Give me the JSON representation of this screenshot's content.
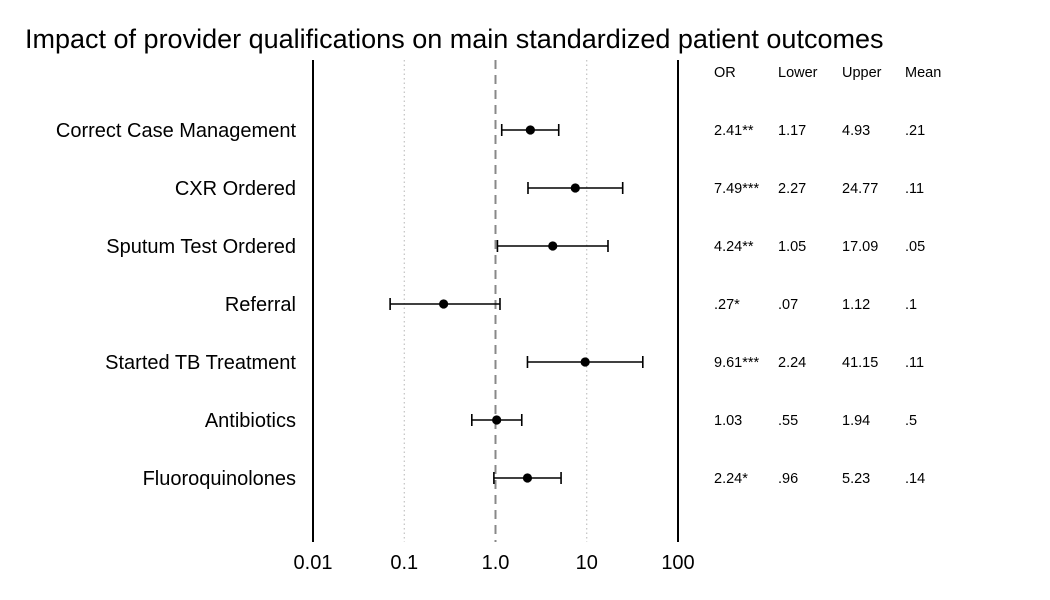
{
  "chart_data": {
    "type": "scatter",
    "title": "Impact of provider qualifications on main standardized patient outcomes",
    "x_scale": "log",
    "xlim": [
      0.01,
      100
    ],
    "x_ticks": [
      0.01,
      0.1,
      1.0,
      10,
      100
    ],
    "x_tick_labels": [
      "0.01",
      "0.1",
      "1.0",
      "10",
      "100"
    ],
    "reference_line": 1.0,
    "grid": "dotted vertical at 0.1 and 10",
    "categories": [
      "Correct Case Management",
      "CXR Ordered",
      "Sputum Test Ordered",
      "Referral",
      "Started TB Treatment",
      "Antibiotics",
      "Fluoroquinolones"
    ],
    "estimates": [
      2.41,
      7.49,
      4.24,
      0.27,
      9.61,
      1.03,
      2.24
    ],
    "lower": [
      1.17,
      2.27,
      1.05,
      0.07,
      2.24,
      0.55,
      0.96
    ],
    "upper": [
      4.93,
      24.77,
      17.09,
      1.12,
      41.15,
      1.94,
      5.23
    ],
    "table": {
      "headers": [
        "OR",
        "Lower",
        "Upper",
        "Mean"
      ],
      "rows": [
        [
          "2.41**",
          "1.17",
          "4.93",
          ".21"
        ],
        [
          "7.49***",
          "2.27",
          "24.77",
          ".11"
        ],
        [
          "4.24**",
          "1.05",
          "17.09",
          ".05"
        ],
        [
          ".27*",
          ".07",
          "1.12",
          ".1"
        ],
        [
          "9.61***",
          "2.24",
          "41.15",
          ".11"
        ],
        [
          "1.03",
          ".55",
          "1.94",
          ".5"
        ],
        [
          "2.24*",
          ".96",
          "5.23",
          ".14"
        ]
      ]
    },
    "colors": {
      "marker": "#000000",
      "reference_line": "#888888",
      "grid": "#b5b5b5",
      "frame": "#000000"
    }
  }
}
